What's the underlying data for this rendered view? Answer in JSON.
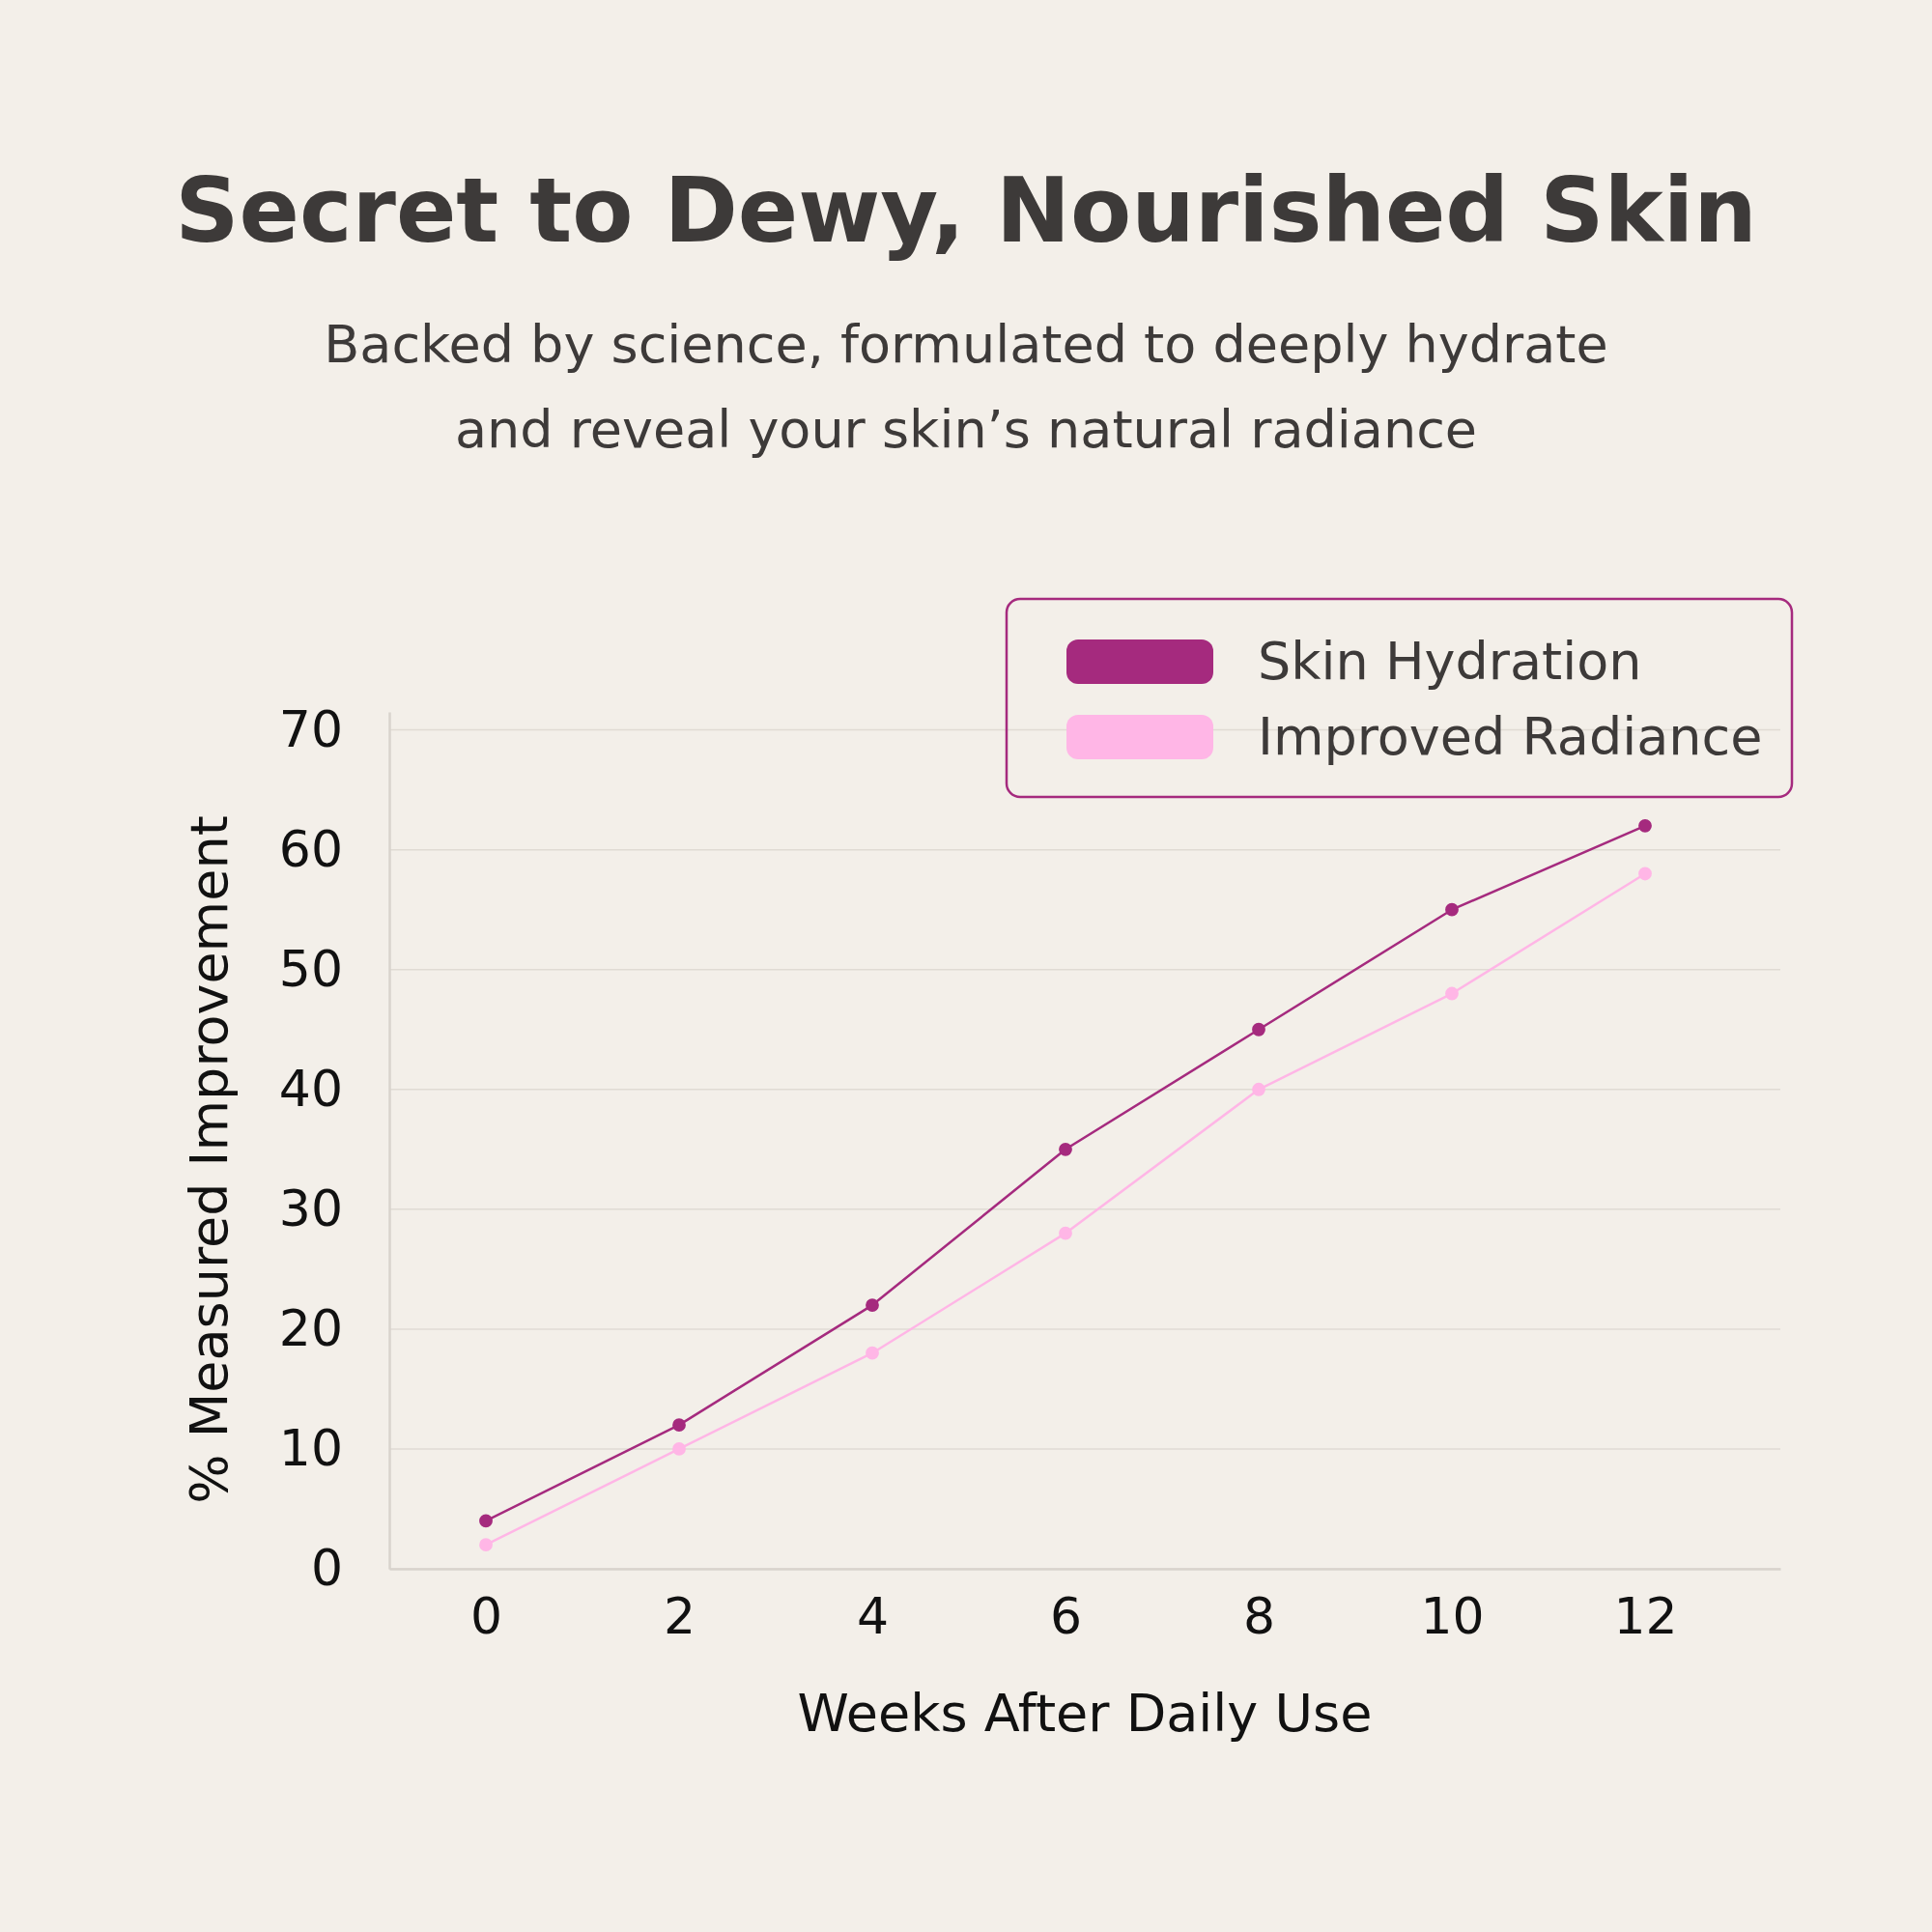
{
  "chart_data": {
    "type": "line",
    "title": "Secret to Dewy, Nourished Skin",
    "subtitle": "Backed by science, formulated to deeply hydrate\nand reveal your skin’s natural radiance",
    "xlabel": "Weeks After Daily Use",
    "ylabel": "% Measured Improvement",
    "x": [
      0,
      2,
      4,
      6,
      8,
      10,
      12
    ],
    "series": [
      {
        "name": "Skin Hydration",
        "color": "#a52a7e",
        "values": [
          4,
          12,
          22,
          35,
          45,
          55,
          62
        ]
      },
      {
        "name": "Improved Radiance",
        "color": "#ffb6e6",
        "values": [
          2,
          10,
          18,
          28,
          40,
          48,
          58
        ]
      }
    ],
    "xlim": [
      -1,
      13.4
    ],
    "xticks": [
      0,
      2,
      4,
      6,
      8,
      10,
      12
    ],
    "ylim": [
      0,
      71.5
    ],
    "yticks": [
      0,
      10,
      20,
      30,
      40,
      50,
      60,
      70
    ],
    "grid": "y",
    "legend": "top right",
    "marker": "circle",
    "line_style": "solid"
  }
}
